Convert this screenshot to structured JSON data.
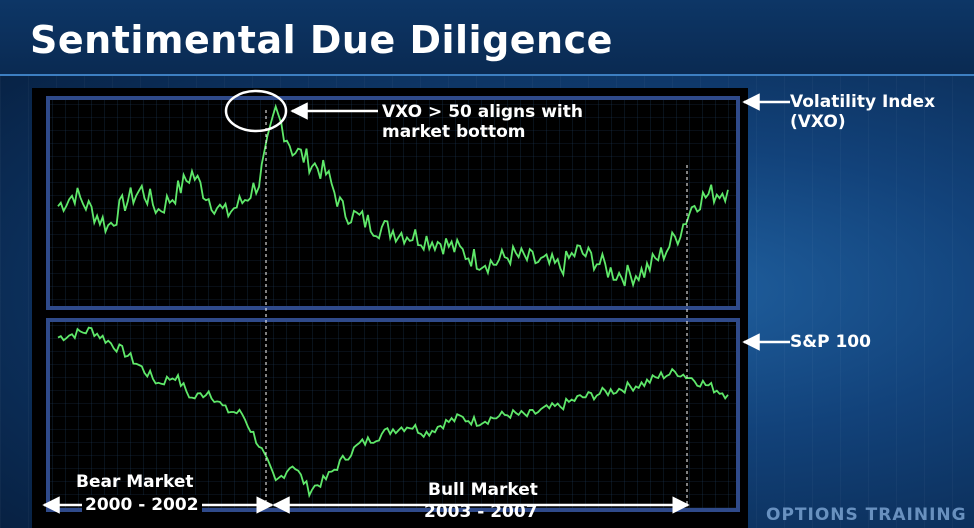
{
  "title": "Sentimental Due Diligence",
  "brand": "OPTIONS TRAINING",
  "colors": {
    "line": "#5fe86a",
    "grid": "#1e3a5a",
    "frame": "#2f4a8a",
    "text": "#ffffff"
  },
  "annotations": {
    "vxo_bottom_line1": "VXO > 50 aligns with",
    "vxo_bottom_line2": "market bottom",
    "vix_label_line1": "Volatility Index",
    "vix_label_line2": "(VXO)",
    "sp_label": "S&P 100",
    "bear_line1": "Bear Market",
    "bear_line2": "2000 - 2002",
    "bull_line1": "Bull Market",
    "bull_line2": "2003 - 2007"
  },
  "chart_data": [
    {
      "type": "line",
      "series": [
        {
          "name": "Volatility Index (VXO)",
          "x": [
            2000.0,
            2000.2,
            2000.4,
            2000.6,
            2000.8,
            2001.0,
            2001.2,
            2001.4,
            2001.6,
            2001.8,
            2002.0,
            2002.2,
            2002.4,
            2002.6,
            2002.8,
            2003.0,
            2003.2,
            2003.4,
            2003.6,
            2003.8,
            2004.0,
            2004.2,
            2004.4,
            2004.6,
            2004.8,
            2005.0,
            2005.2,
            2005.4,
            2005.6,
            2005.8,
            2006.0,
            2006.2,
            2006.4,
            2006.6,
            2006.8,
            2007.0,
            2007.2,
            2007.4,
            2007.6,
            2007.8,
            2008.0
          ],
          "values": [
            27,
            30,
            26,
            22,
            28,
            31,
            26,
            30,
            35,
            29,
            25,
            28,
            33,
            50,
            41,
            38,
            35,
            26,
            24,
            22,
            21,
            20,
            19,
            18,
            16,
            14,
            13,
            15,
            14,
            13,
            12,
            16,
            14,
            11,
            10,
            11,
            15,
            20,
            28,
            30,
            31
          ]
        }
      ]
    },
    {
      "type": "line",
      "series": [
        {
          "name": "S&P 100",
          "x": [
            2000.0,
            2000.2,
            2000.4,
            2000.6,
            2000.8,
            2001.0,
            2001.2,
            2001.4,
            2001.6,
            2001.8,
            2002.0,
            2002.2,
            2002.4,
            2002.6,
            2002.8,
            2003.0,
            2003.2,
            2003.4,
            2003.6,
            2003.8,
            2004.0,
            2004.2,
            2004.4,
            2004.6,
            2004.8,
            2005.0,
            2005.2,
            2005.4,
            2005.6,
            2005.8,
            2006.0,
            2006.2,
            2006.4,
            2006.6,
            2006.8,
            2007.0,
            2007.2,
            2007.4,
            2007.6,
            2007.8,
            2008.0
          ],
          "values": [
            800,
            810,
            820,
            790,
            760,
            720,
            680,
            700,
            640,
            660,
            610,
            600,
            520,
            420,
            470,
            400,
            430,
            480,
            520,
            540,
            560,
            570,
            550,
            575,
            590,
            580,
            590,
            600,
            595,
            610,
            620,
            640,
            650,
            660,
            670,
            680,
            700,
            710,
            690,
            670,
            650
          ]
        }
      ]
    }
  ]
}
